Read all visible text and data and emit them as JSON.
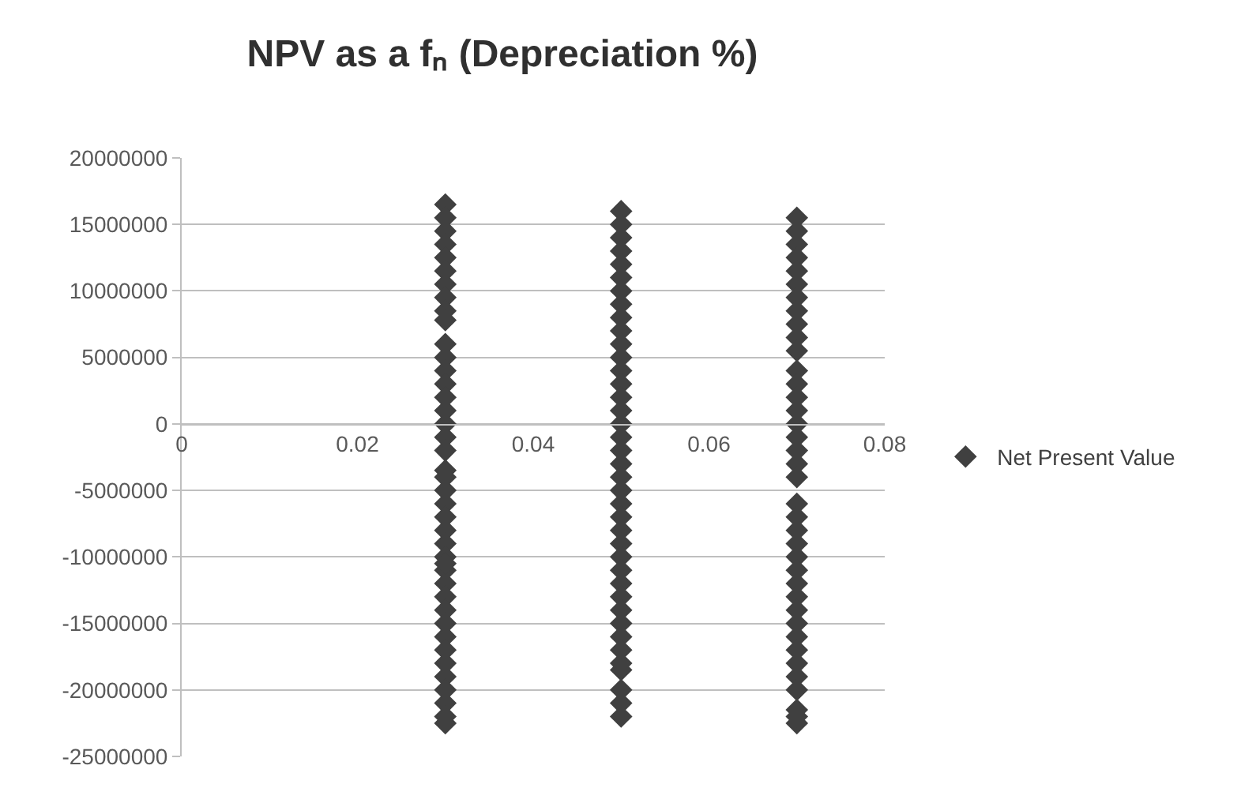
{
  "chart_data": {
    "type": "scatter",
    "title": "NPV as a fₙ (Depreciation %)",
    "x": [
      0.03,
      0.03,
      0.03,
      0.03,
      0.03,
      0.03,
      0.03,
      0.03,
      0.03,
      0.03,
      0.03,
      0.03,
      0.03,
      0.03,
      0.03,
      0.03,
      0.03,
      0.03,
      0.03,
      0.03,
      0.03,
      0.03,
      0.03,
      0.03,
      0.03,
      0.03,
      0.03,
      0.03,
      0.03,
      0.03,
      0.03,
      0.03,
      0.03,
      0.03,
      0.03,
      0.03,
      0.03,
      0.03,
      0.03,
      0.03,
      0.03,
      0.05,
      0.05,
      0.05,
      0.05,
      0.05,
      0.05,
      0.05,
      0.05,
      0.05,
      0.05,
      0.05,
      0.05,
      0.05,
      0.05,
      0.05,
      0.05,
      0.05,
      0.05,
      0.05,
      0.05,
      0.05,
      0.05,
      0.05,
      0.05,
      0.05,
      0.05,
      0.05,
      0.05,
      0.05,
      0.05,
      0.05,
      0.05,
      0.05,
      0.05,
      0.05,
      0.05,
      0.05,
      0.05,
      0.05,
      0.07,
      0.07,
      0.07,
      0.07,
      0.07,
      0.07,
      0.07,
      0.07,
      0.07,
      0.07,
      0.07,
      0.07,
      0.07,
      0.07,
      0.07,
      0.07,
      0.07,
      0.07,
      0.07,
      0.07,
      0.07,
      0.07,
      0.07,
      0.07,
      0.07,
      0.07,
      0.07,
      0.07,
      0.07,
      0.07,
      0.07,
      0.07,
      0.07,
      0.07,
      0.07,
      0.07,
      0.07,
      0.07
    ],
    "series": [
      {
        "name": "Net Present Value",
        "color": "#404040",
        "values": [
          16500000,
          15500000,
          14500000,
          13500000,
          12500000,
          11500000,
          10500000,
          9500000,
          8500000,
          7800000,
          6000000,
          5000000,
          4000000,
          3000000,
          2000000,
          1000000,
          0,
          -1000000,
          -2000000,
          -4000000,
          -5000000,
          -6000000,
          -7000000,
          -8000000,
          -9000000,
          -10000000,
          -11000000,
          -12000000,
          -13000000,
          -14000000,
          -15000000,
          -16000000,
          -17000000,
          -18000000,
          -19000000,
          -20000000,
          -21000000,
          -22000000,
          -22500000,
          -10500000,
          -3500000,
          16000000,
          15000000,
          14000000,
          13000000,
          12000000,
          11000000,
          10000000,
          9000000,
          8000000,
          7000000,
          6000000,
          5000000,
          4000000,
          3000000,
          2000000,
          1000000,
          0,
          -1000000,
          -2000000,
          -3000000,
          -4000000,
          -5000000,
          -6000000,
          -7000000,
          -8000000,
          -9000000,
          -10000000,
          -11000000,
          -12000000,
          -13000000,
          -14000000,
          -15000000,
          -16000000,
          -17000000,
          -18000000,
          -20000000,
          -21000000,
          -22000000,
          -18500000,
          15500000,
          14500000,
          13500000,
          12500000,
          11500000,
          10500000,
          9500000,
          8500000,
          7500000,
          6500000,
          5500000,
          4000000,
          3000000,
          2000000,
          1000000,
          0,
          -1000000,
          -2000000,
          -3000000,
          -4000000,
          -6000000,
          -7000000,
          -8000000,
          -9000000,
          -10000000,
          -11000000,
          -12000000,
          -13000000,
          -14000000,
          -15000000,
          -16000000,
          -17000000,
          -18000000,
          -19000000,
          -20000000,
          -21500000,
          -22500000,
          -22000000
        ]
      }
    ],
    "xlim": [
      0,
      0.08
    ],
    "xticks": [
      0,
      0.02,
      0.04,
      0.06,
      0.08
    ],
    "ylim": [
      -25000000,
      20000000
    ],
    "yticks": [
      -25000000,
      -20000000,
      -15000000,
      -10000000,
      -5000000,
      0,
      5000000,
      10000000,
      15000000,
      20000000
    ],
    "grid": "y",
    "legend": "right",
    "marker": "diamond"
  }
}
